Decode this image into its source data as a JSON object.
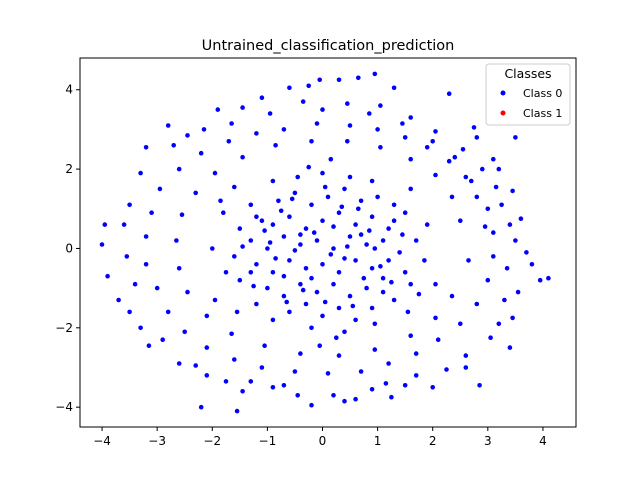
{
  "chart_data": {
    "type": "scatter",
    "title": "Untrained_classification_prediction",
    "xlabel": "",
    "ylabel": "",
    "xlim": [
      -4.4,
      4.6
    ],
    "ylim": [
      -4.5,
      4.8
    ],
    "xticks": [
      "−4",
      "−3",
      "−2",
      "−1",
      "0",
      "1",
      "2",
      "3",
      "4"
    ],
    "yticks": [
      "−4",
      "−2",
      "0",
      "2",
      "4"
    ],
    "grid": false,
    "legend": {
      "title": "Classes",
      "placement": "top-right",
      "entries": [
        {
          "label": "Class 0",
          "color": "#0000ff"
        },
        {
          "label": "Class 1",
          "color": "#ff0000"
        }
      ]
    },
    "series": [
      {
        "name": "Class 0",
        "color": "#0000ff",
        "points": [
          [
            -0.05,
            4.25
          ],
          [
            0.65,
            4.3
          ],
          [
            0.95,
            4.4
          ],
          [
            1.3,
            4.05
          ],
          [
            -0.6,
            4.05
          ],
          [
            -0.25,
            4.1
          ],
          [
            2.3,
            3.9
          ],
          [
            0.3,
            4.25
          ],
          [
            -1.1,
            3.8
          ],
          [
            -1.9,
            3.5
          ],
          [
            -1.45,
            3.55
          ],
          [
            -2.8,
            3.1
          ],
          [
            -2.15,
            3.0
          ],
          [
            -3.2,
            2.55
          ],
          [
            -3.3,
            1.9
          ],
          [
            -3.5,
            1.1
          ],
          [
            -3.6,
            0.6
          ],
          [
            -3.95,
            0.6
          ],
          [
            -4.0,
            0.1
          ],
          [
            -3.9,
            -0.7
          ],
          [
            -3.7,
            -1.3
          ],
          [
            -3.5,
            -1.6
          ],
          [
            -3.15,
            -2.45
          ],
          [
            -2.6,
            -2.9
          ],
          [
            -2.1,
            -3.2
          ],
          [
            -1.75,
            -3.35
          ],
          [
            -1.45,
            -3.6
          ],
          [
            -0.9,
            -3.5
          ],
          [
            -0.45,
            -3.7
          ],
          [
            0.2,
            -3.7
          ],
          [
            0.6,
            -3.8
          ],
          [
            1.15,
            -3.4
          ],
          [
            1.7,
            -3.2
          ],
          [
            2.25,
            -3.05
          ],
          [
            2.6,
            -2.7
          ],
          [
            3.05,
            -2.25
          ],
          [
            3.45,
            -1.75
          ],
          [
            3.55,
            -1.1
          ],
          [
            3.8,
            -0.4
          ],
          [
            3.95,
            -0.8
          ],
          [
            4.1,
            -0.75
          ],
          [
            3.7,
            -0.1
          ],
          [
            3.5,
            0.2
          ],
          [
            3.25,
            1.1
          ],
          [
            3.15,
            1.55
          ],
          [
            2.9,
            2.0
          ],
          [
            2.55,
            2.5
          ],
          [
            2.05,
            2.95
          ],
          [
            1.6,
            3.3
          ],
          [
            1.05,
            3.6
          ],
          [
            0.45,
            3.65
          ],
          [
            -0.35,
            3.7
          ],
          [
            -2.2,
            -4.0
          ],
          [
            -1.55,
            -4.1
          ],
          [
            -0.2,
            -3.95
          ],
          [
            0.4,
            -3.85
          ],
          [
            1.25,
            -3.75
          ],
          [
            2.85,
            -3.45
          ],
          [
            3.4,
            -2.5
          ],
          [
            3.5,
            2.8
          ],
          [
            3.1,
            2.25
          ],
          [
            2.8,
            2.8
          ],
          [
            2.75,
            3.05
          ],
          [
            3.6,
            0.75
          ],
          [
            3.4,
            0.6
          ],
          [
            3.0,
            1.0
          ],
          [
            2.8,
            1.3
          ],
          [
            2.6,
            1.8
          ],
          [
            2.3,
            2.2
          ],
          [
            1.9,
            2.55
          ],
          [
            1.5,
            2.8
          ],
          [
            1.0,
            3.0
          ],
          [
            0.5,
            3.1
          ],
          [
            -0.1,
            3.15
          ],
          [
            -0.7,
            3.0
          ],
          [
            -1.2,
            2.9
          ],
          [
            -1.7,
            2.7
          ],
          [
            -2.2,
            2.4
          ],
          [
            -2.6,
            2.0
          ],
          [
            -2.95,
            1.5
          ],
          [
            -3.1,
            0.9
          ],
          [
            -3.2,
            0.3
          ],
          [
            -3.2,
            -0.4
          ],
          [
            -3.0,
            -1.0
          ],
          [
            -2.8,
            -1.6
          ],
          [
            -2.5,
            -2.1
          ],
          [
            -2.1,
            -2.5
          ],
          [
            -1.6,
            -2.8
          ],
          [
            -1.1,
            -3.0
          ],
          [
            -0.5,
            -3.1
          ],
          [
            0.1,
            -3.15
          ],
          [
            0.7,
            -3.1
          ],
          [
            1.2,
            -2.9
          ],
          [
            1.7,
            -2.65
          ],
          [
            2.1,
            -2.3
          ],
          [
            2.5,
            -1.9
          ],
          [
            2.8,
            -1.4
          ],
          [
            3.0,
            -0.8
          ],
          [
            3.1,
            -0.2
          ],
          [
            3.1,
            0.4
          ],
          [
            -2.7,
            2.6
          ],
          [
            -2.45,
            2.85
          ],
          [
            -1.65,
            3.15
          ],
          [
            -0.95,
            3.4
          ],
          [
            0.0,
            3.5
          ],
          [
            0.85,
            3.4
          ],
          [
            1.45,
            3.15
          ],
          [
            2.0,
            2.7
          ],
          [
            2.4,
            2.3
          ],
          [
            2.7,
            1.7
          ],
          [
            2.95,
            0.55
          ],
          [
            2.65,
            -0.3
          ],
          [
            2.35,
            -1.2
          ],
          [
            2.05,
            -1.75
          ],
          [
            1.6,
            -2.2
          ],
          [
            0.95,
            -2.55
          ],
          [
            0.3,
            -2.7
          ],
          [
            -0.4,
            -2.65
          ],
          [
            -1.05,
            -2.45
          ],
          [
            -1.65,
            -2.15
          ],
          [
            -2.1,
            -1.7
          ],
          [
            -2.45,
            -1.1
          ],
          [
            -2.6,
            -0.5
          ],
          [
            -2.65,
            0.2
          ],
          [
            -2.55,
            0.85
          ],
          [
            -2.3,
            1.4
          ],
          [
            -1.95,
            1.9
          ],
          [
            -1.45,
            2.3
          ],
          [
            -0.85,
            2.6
          ],
          [
            -0.2,
            2.7
          ],
          [
            0.45,
            2.7
          ],
          [
            1.05,
            2.55
          ],
          [
            1.6,
            2.25
          ],
          [
            2.05,
            1.85
          ],
          [
            2.35,
            1.3
          ],
          [
            2.5,
            0.7
          ],
          [
            -3.4,
            -0.9
          ],
          [
            -3.55,
            -0.2
          ],
          [
            -3.3,
            -2.0
          ],
          [
            -2.9,
            -2.3
          ],
          [
            -2.3,
            -2.95
          ],
          [
            -1.3,
            -3.35
          ],
          [
            -0.7,
            -3.45
          ],
          [
            0.9,
            -3.55
          ],
          [
            1.5,
            -3.45
          ],
          [
            2.0,
            -3.5
          ],
          [
            2.6,
            -3.0
          ],
          [
            3.2,
            -1.9
          ],
          [
            3.3,
            -1.3
          ],
          [
            3.35,
            -0.5
          ],
          [
            3.45,
            1.45
          ],
          [
            3.2,
            2.0
          ],
          [
            -1.2,
            0.8
          ],
          [
            -0.9,
            0.6
          ],
          [
            -0.6,
            0.8
          ],
          [
            -0.3,
            0.5
          ],
          [
            0.0,
            0.7
          ],
          [
            0.3,
            0.9
          ],
          [
            0.6,
            0.6
          ],
          [
            0.9,
            0.8
          ],
          [
            1.2,
            0.5
          ],
          [
            -1.3,
            0.2
          ],
          [
            -1.0,
            0.0
          ],
          [
            -0.7,
            0.3
          ],
          [
            -0.4,
            0.1
          ],
          [
            -0.1,
            0.2
          ],
          [
            0.2,
            0.0
          ],
          [
            0.5,
            0.3
          ],
          [
            0.8,
            0.1
          ],
          [
            1.1,
            0.2
          ],
          [
            1.4,
            -0.1
          ],
          [
            -1.2,
            -0.4
          ],
          [
            -0.9,
            -0.6
          ],
          [
            -0.6,
            -0.3
          ],
          [
            -0.3,
            -0.5
          ],
          [
            0.0,
            -0.4
          ],
          [
            0.3,
            -0.6
          ],
          [
            0.6,
            -0.3
          ],
          [
            0.9,
            -0.5
          ],
          [
            1.2,
            -0.3
          ],
          [
            1.5,
            -0.6
          ],
          [
            -1.0,
            -1.0
          ],
          [
            -0.7,
            -1.2
          ],
          [
            -0.4,
            -0.9
          ],
          [
            -0.1,
            -1.1
          ],
          [
            0.2,
            -0.9
          ],
          [
            0.5,
            -1.2
          ],
          [
            0.8,
            -1.0
          ],
          [
            1.1,
            -1.1
          ],
          [
            -0.8,
            1.2
          ],
          [
            -0.5,
            1.4
          ],
          [
            -0.2,
            1.1
          ],
          [
            0.1,
            1.3
          ],
          [
            0.4,
            1.5
          ],
          [
            0.7,
            1.2
          ],
          [
            1.0,
            1.3
          ],
          [
            -0.6,
            -1.6
          ],
          [
            -0.3,
            -1.4
          ],
          [
            0.0,
            -1.7
          ],
          [
            0.3,
            -1.5
          ],
          [
            0.6,
            -1.8
          ],
          [
            0.9,
            -1.5
          ],
          [
            -1.5,
            0.5
          ],
          [
            -1.6,
            -0.2
          ],
          [
            -1.5,
            -0.8
          ],
          [
            1.5,
            0.9
          ],
          [
            1.7,
            0.2
          ],
          [
            1.6,
            -0.9
          ],
          [
            -0.45,
            1.8
          ],
          [
            0.0,
            1.9
          ],
          [
            0.5,
            1.8
          ],
          [
            -0.2,
            -2.0
          ],
          [
            0.4,
            -2.1
          ],
          [
            -1.3,
            1.1
          ],
          [
            1.3,
            1.1
          ],
          [
            -1.2,
            -1.4
          ],
          [
            1.3,
            -1.3
          ],
          [
            -0.15,
            0.4
          ],
          [
            0.15,
            -0.15
          ],
          [
            0.45,
            0.05
          ],
          [
            -0.5,
            -0.05
          ],
          [
            0.75,
            -0.75
          ],
          [
            -0.75,
            0.95
          ],
          [
            1.05,
            -0.45
          ],
          [
            -1.05,
            0.45
          ],
          [
            0.35,
            1.05
          ],
          [
            -0.35,
            -1.05
          ],
          [
            0.85,
            0.45
          ],
          [
            -0.85,
            -0.25
          ],
          [
            1.25,
            -0.85
          ],
          [
            -1.25,
            -0.95
          ],
          [
            0.55,
            -1.45
          ],
          [
            -0.55,
            1.25
          ],
          [
            1.45,
            0.35
          ],
          [
            -1.45,
            0.05
          ],
          [
            0.05,
            1.55
          ],
          [
            0.05,
            -1.35
          ],
          [
            -1.8,
            0.9
          ],
          [
            1.85,
            -0.3
          ],
          [
            -1.75,
            -0.6
          ],
          [
            1.9,
            0.6
          ],
          [
            -0.9,
            1.7
          ],
          [
            0.9,
            1.7
          ],
          [
            -0.9,
            -1.8
          ],
          [
            0.95,
            -1.9
          ],
          [
            -2.0,
            0.0
          ],
          [
            2.05,
            -0.9
          ],
          [
            -1.95,
            -1.3
          ],
          [
            -0.25,
            2.05
          ],
          [
            0.25,
            -2.25
          ],
          [
            1.6,
            1.5
          ],
          [
            -1.6,
            1.55
          ],
          [
            1.55,
            -1.6
          ],
          [
            -1.55,
            -1.6
          ],
          [
            0.7,
            0.35
          ],
          [
            -0.7,
            -0.7
          ],
          [
            0.2,
            0.55
          ],
          [
            -0.2,
            -0.75
          ],
          [
            0.95,
            0.0
          ],
          [
            -0.95,
            0.15
          ],
          [
            0.4,
            -0.25
          ],
          [
            -0.4,
            0.35
          ],
          [
            1.3,
            0.7
          ],
          [
            -1.3,
            -0.6
          ],
          [
            0.65,
            1.0
          ],
          [
            -0.65,
            -1.35
          ],
          [
            1.1,
            -0.75
          ],
          [
            -1.1,
            0.7
          ],
          [
            1.75,
            -1.15
          ],
          [
            -1.85,
            1.2
          ],
          [
            0.15,
            2.25
          ],
          [
            -0.05,
            -2.45
          ]
        ]
      },
      {
        "name": "Class 1",
        "color": "#ff0000",
        "points": []
      }
    ]
  }
}
